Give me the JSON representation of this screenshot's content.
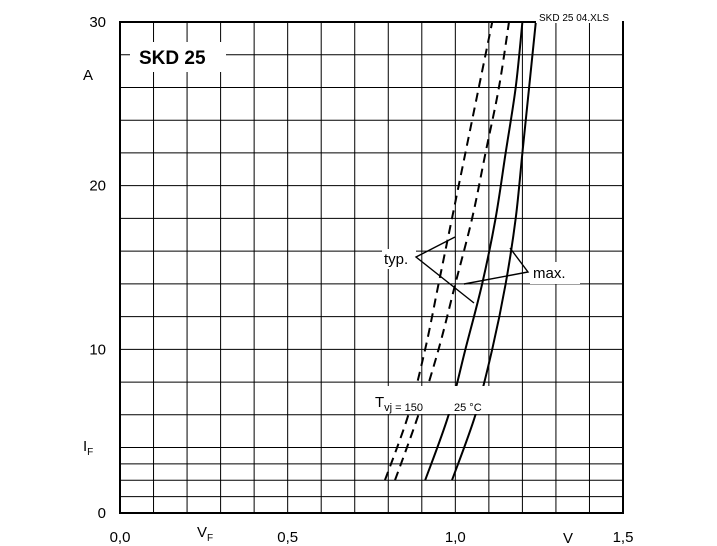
{
  "chart_data": {
    "type": "line",
    "title": "SKD 25",
    "file_tag": "SKD 25  04.XLS",
    "xlabel": "V",
    "xlabel_sub": "F",
    "x_unit": "V",
    "ylabel": "I",
    "ylabel_sub": "F",
    "y_unit": "A",
    "xlim": [
      0.0,
      1.5
    ],
    "ylim": [
      0,
      30
    ],
    "x_ticks": [
      {
        "value": 0.0,
        "label": "0,0"
      },
      {
        "value": 0.5,
        "label": "0,5"
      },
      {
        "value": 1.0,
        "label": "1,0"
      },
      {
        "value": 1.5,
        "label": "1,5"
      }
    ],
    "y_ticks": [
      {
        "value": 0,
        "label": "0"
      },
      {
        "value": 10,
        "label": "10"
      },
      {
        "value": 20,
        "label": "20"
      },
      {
        "value": 30,
        "label": "30"
      }
    ],
    "grid": {
      "x_step": 0.1,
      "y_step": 2,
      "y_step_lower": 1
    },
    "annotations": {
      "typ": "typ.",
      "max": "max.",
      "tvj": "T",
      "tvj_sub": "vj = 150",
      "tvj_25": "25 °C"
    },
    "series": [
      {
        "style": "dashed",
        "points": [
          [
            0.79,
            2
          ],
          [
            0.86,
            6
          ],
          [
            0.91,
            10
          ],
          [
            0.95,
            14
          ],
          [
            0.99,
            18
          ],
          [
            1.03,
            22
          ],
          [
            1.07,
            26
          ],
          [
            1.11,
            30
          ]
        ]
      },
      {
        "style": "dashed",
        "points": [
          [
            0.82,
            2
          ],
          [
            0.89,
            6
          ],
          [
            0.95,
            10
          ],
          [
            1.0,
            14
          ],
          [
            1.05,
            18
          ],
          [
            1.09,
            22
          ],
          [
            1.13,
            26
          ],
          [
            1.16,
            30
          ]
        ]
      },
      {
        "style": "solid",
        "points": [
          [
            0.91,
            2
          ],
          [
            0.98,
            6
          ],
          [
            1.03,
            10
          ],
          [
            1.08,
            14
          ],
          [
            1.12,
            18
          ],
          [
            1.15,
            22
          ],
          [
            1.18,
            26
          ],
          [
            1.2,
            30
          ]
        ]
      },
      {
        "style": "solid",
        "points": [
          [
            0.99,
            2
          ],
          [
            1.06,
            6
          ],
          [
            1.11,
            10
          ],
          [
            1.15,
            14
          ],
          [
            1.18,
            18
          ],
          [
            1.2,
            22
          ],
          [
            1.22,
            26
          ],
          [
            1.24,
            30
          ]
        ]
      }
    ]
  }
}
